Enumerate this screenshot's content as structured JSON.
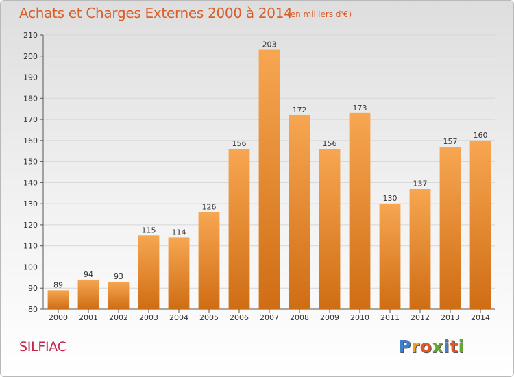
{
  "title": "Achats et Charges Externes 2000 à 2014",
  "subtitle": "(en milliers d'€)",
  "commune": "SILFIAC",
  "logo": {
    "letters": [
      "P",
      "r",
      "o",
      "x",
      "i",
      "t",
      "i"
    ],
    "colors": [
      "#3d7fcb",
      "#f2a21a",
      "#e2572a",
      "#62a832",
      "#3d7fcb",
      "#e2572a",
      "#62a832"
    ]
  },
  "colors": {
    "bar_light": "#f7a651",
    "bar_dark": "#cf6d14",
    "title": "#d95f2a",
    "commune": "#c0264a"
  },
  "chart_data": {
    "type": "bar",
    "title": "Achats et Charges Externes 2000 à 2014",
    "subtitle": "(en milliers d'€)",
    "categories": [
      "2000",
      "2001",
      "2002",
      "2003",
      "2004",
      "2005",
      "2006",
      "2007",
      "2008",
      "2009",
      "2010",
      "2011",
      "2012",
      "2013",
      "2014"
    ],
    "values": [
      89,
      94,
      93,
      115,
      114,
      126,
      156,
      203,
      172,
      156,
      173,
      130,
      137,
      157,
      160
    ],
    "ylim": [
      80,
      210
    ],
    "yticks": [
      80,
      90,
      100,
      110,
      120,
      130,
      140,
      150,
      160,
      170,
      180,
      190,
      200,
      210
    ],
    "xlabel": "",
    "ylabel": "",
    "grid": true
  }
}
